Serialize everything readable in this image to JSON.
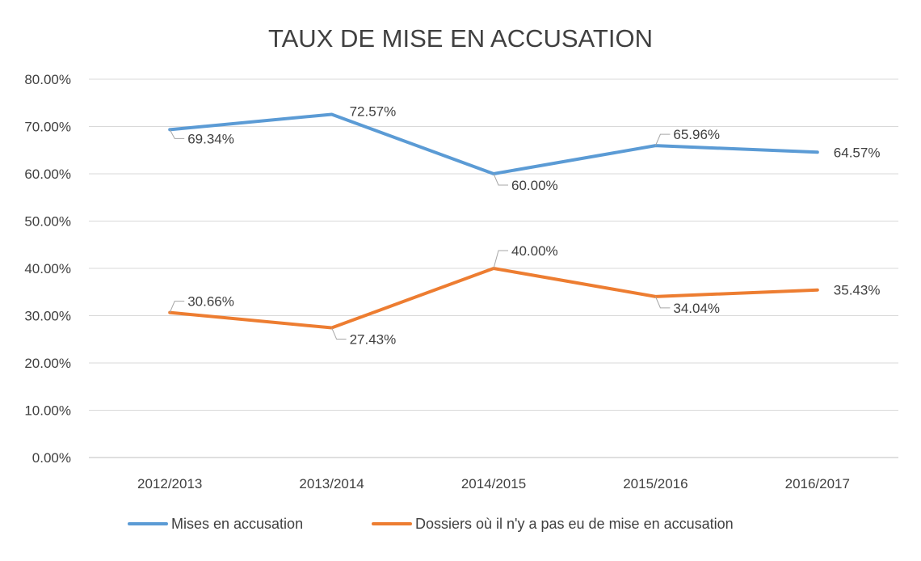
{
  "chart_data": {
    "type": "line",
    "title": "TAUX DE MISE EN ACCUSATION",
    "categories": [
      "2012/2013",
      "2013/2014",
      "2014/2015",
      "2015/2016",
      "2016/2017"
    ],
    "ylim": [
      0,
      80
    ],
    "yticks": [
      0,
      10,
      20,
      30,
      40,
      50,
      60,
      70,
      80
    ],
    "ytick_labels": [
      "0.00%",
      "10.00%",
      "20.00%",
      "30.00%",
      "40.00%",
      "50.00%",
      "60.00%",
      "70.00%",
      "80.00%"
    ],
    "grid": true,
    "legend_position": "bottom",
    "series": [
      {
        "name": "Mises en accusation",
        "color": "#5b9bd5",
        "values": [
          69.34,
          72.57,
          60.0,
          65.96,
          64.57
        ],
        "labels": [
          "69.34%",
          "72.57%",
          "60.00%",
          "65.96%",
          "64.57%"
        ]
      },
      {
        "name": "Dossiers où il n'y a pas eu de mise en accusation",
        "color": "#ed7d31",
        "values": [
          30.66,
          27.43,
          40.0,
          34.04,
          35.43
        ],
        "labels": [
          "30.66%",
          "27.43%",
          "40.00%",
          "34.04%",
          "35.43%"
        ]
      }
    ]
  }
}
